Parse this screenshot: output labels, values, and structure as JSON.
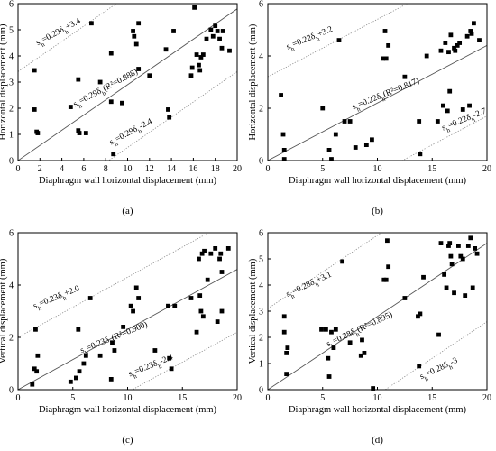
{
  "chart_data": [
    {
      "type": "scatter",
      "panel_label": "(a)",
      "xlabel": "Diaphragm wall horizontal displacement (mm)",
      "ylabel": "Horizontal displacement (mm)",
      "xlim": [
        0,
        20
      ],
      "ylim": [
        0,
        6
      ],
      "xticks": [
        0,
        2,
        4,
        6,
        8,
        10,
        12,
        14,
        16,
        18,
        20
      ],
      "yticks": [
        0,
        1,
        2,
        3,
        4,
        5,
        6
      ],
      "lines": [
        {
          "label": "s_h=0.29δ_h+3.4",
          "slope": 0.29,
          "intercept": 3.4,
          "style": "dotted",
          "label_at": [
            1.8,
            4.4
          ],
          "label_rot": -28
        },
        {
          "label": "s_h=0.29δ_h(R²=0.888)",
          "slope": 0.29,
          "intercept": 0,
          "style": "solid",
          "label_at": [
            5.2,
            2.05
          ],
          "label_rot": -28
        },
        {
          "label": "s_h=0.29δ_h-2.4",
          "slope": 0.29,
          "intercept": -2.4,
          "style": "dotted",
          "label_at": [
            8.5,
            0.6
          ],
          "label_rot": -28
        }
      ],
      "points": [
        [
          1.5,
          3.45
        ],
        [
          1.5,
          1.95
        ],
        [
          1.7,
          1.1
        ],
        [
          1.8,
          1.05
        ],
        [
          4.8,
          2.05
        ],
        [
          5.5,
          3.1
        ],
        [
          5.5,
          1.15
        ],
        [
          5.6,
          1.05
        ],
        [
          6.2,
          1.05
        ],
        [
          6.7,
          5.25
        ],
        [
          7.5,
          3.0
        ],
        [
          8.5,
          4.1
        ],
        [
          8.5,
          2.25
        ],
        [
          8.7,
          0.25
        ],
        [
          9.5,
          2.2
        ],
        [
          10.5,
          4.95
        ],
        [
          10.6,
          4.75
        ],
        [
          10.8,
          4.45
        ],
        [
          11.0,
          5.25
        ],
        [
          11.0,
          3.5
        ],
        [
          12.0,
          3.25
        ],
        [
          13.5,
          4.25
        ],
        [
          13.7,
          1.95
        ],
        [
          13.8,
          1.65
        ],
        [
          14.2,
          4.95
        ],
        [
          15.8,
          3.25
        ],
        [
          15.9,
          3.55
        ],
        [
          16.1,
          5.85
        ],
        [
          16.3,
          4.05
        ],
        [
          16.5,
          3.65
        ],
        [
          16.6,
          3.45
        ],
        [
          16.7,
          3.95
        ],
        [
          16.9,
          4.05
        ],
        [
          17.2,
          4.65
        ],
        [
          17.6,
          5.0
        ],
        [
          17.8,
          4.75
        ],
        [
          18.0,
          5.15
        ],
        [
          18.2,
          4.95
        ],
        [
          18.4,
          4.65
        ],
        [
          18.6,
          4.3
        ],
        [
          18.7,
          4.95
        ],
        [
          19.3,
          4.2
        ]
      ]
    },
    {
      "type": "scatter",
      "panel_label": "(b)",
      "xlabel": "Diaphragm wall horizontal displacement (mm)",
      "ylabel": "Horizontal displacement (mm)",
      "xlim": [
        0,
        20
      ],
      "ylim": [
        0,
        6
      ],
      "xticks": [
        0,
        5,
        10,
        15,
        20
      ],
      "yticks": [
        0,
        2,
        4,
        6
      ],
      "lines": [
        {
          "label": "s_h=0.22δ_h+3.2",
          "slope": 0.22,
          "intercept": 3.2,
          "style": "dotted",
          "label_at": [
            1.8,
            4.25
          ],
          "label_rot": -22
        },
        {
          "label": "s_h=0.22δ_h(R²=0.817)",
          "slope": 0.22,
          "intercept": 0,
          "style": "solid",
          "label_at": [
            7.8,
            1.95
          ],
          "label_rot": -22
        },
        {
          "label": "s_h=0.22δ_h-2.7",
          "slope": 0.22,
          "intercept": -2.7,
          "style": "dotted",
          "label_at": [
            16.0,
            1.15
          ],
          "label_rot": -22
        }
      ],
      "points": [
        [
          1.2,
          2.5
        ],
        [
          1.4,
          1.0
        ],
        [
          1.5,
          0.4
        ],
        [
          1.5,
          0.05
        ],
        [
          5.0,
          2.0
        ],
        [
          5.6,
          0.4
        ],
        [
          5.8,
          0.05
        ],
        [
          6.2,
          1.0
        ],
        [
          6.5,
          4.6
        ],
        [
          7.0,
          1.5
        ],
        [
          7.5,
          1.5
        ],
        [
          8.0,
          0.5
        ],
        [
          9.0,
          0.6
        ],
        [
          9.5,
          0.8
        ],
        [
          10.5,
          3.9
        ],
        [
          10.7,
          4.95
        ],
        [
          10.8,
          3.9
        ],
        [
          11.0,
          4.4
        ],
        [
          12.5,
          3.2
        ],
        [
          13.8,
          1.5
        ],
        [
          13.9,
          0.25
        ],
        [
          14.5,
          4.0
        ],
        [
          15.5,
          1.5
        ],
        [
          15.8,
          4.2
        ],
        [
          16.0,
          2.1
        ],
        [
          16.2,
          4.5
        ],
        [
          16.4,
          1.9
        ],
        [
          16.5,
          4.15
        ],
        [
          16.6,
          2.65
        ],
        [
          16.7,
          4.8
        ],
        [
          17.0,
          4.3
        ],
        [
          17.1,
          4.2
        ],
        [
          17.3,
          4.4
        ],
        [
          17.5,
          4.5
        ],
        [
          17.8,
          1.95
        ],
        [
          18.2,
          4.75
        ],
        [
          18.4,
          2.1
        ],
        [
          18.5,
          4.95
        ],
        [
          18.6,
          4.85
        ],
        [
          18.8,
          5.25
        ],
        [
          19.3,
          4.6
        ]
      ]
    },
    {
      "type": "scatter",
      "panel_label": "(c)",
      "xlabel": "Diaphragm wall horizontal displacement (mm)",
      "ylabel": "Vertical displacement (mm)",
      "xlim": [
        0,
        20
      ],
      "ylim": [
        0,
        6
      ],
      "xticks": [
        0,
        5,
        10,
        15,
        20
      ],
      "yticks": [
        0,
        2,
        4,
        6
      ],
      "lines": [
        {
          "label": "s_h=0.23δ_h+2.0",
          "slope": 0.23,
          "intercept": 2.0,
          "style": "dotted",
          "label_at": [
            1.5,
            3.1
          ],
          "label_rot": -22
        },
        {
          "label": "s_h=0.23δ_h(R²=0.900)",
          "slope": 0.23,
          "intercept": 0,
          "style": "solid",
          "label_at": [
            5.8,
            1.4
          ],
          "label_rot": -22
        },
        {
          "label": "s_h=0.23δ_h-2.4",
          "slope": 0.23,
          "intercept": -2.4,
          "style": "dotted",
          "label_at": [
            10.2,
            0.5
          ],
          "label_rot": -22
        }
      ],
      "points": [
        [
          1.3,
          0.2
        ],
        [
          1.5,
          0.8
        ],
        [
          1.6,
          2.3
        ],
        [
          1.7,
          0.7
        ],
        [
          1.8,
          1.3
        ],
        [
          4.8,
          0.3
        ],
        [
          5.3,
          0.45
        ],
        [
          5.5,
          2.3
        ],
        [
          5.6,
          0.7
        ],
        [
          6.0,
          1.0
        ],
        [
          6.2,
          1.3
        ],
        [
          6.6,
          3.5
        ],
        [
          7.5,
          1.3
        ],
        [
          8.5,
          0.4
        ],
        [
          8.6,
          1.8
        ],
        [
          8.8,
          1.5
        ],
        [
          9.6,
          2.4
        ],
        [
          10.3,
          3.2
        ],
        [
          10.5,
          3.0
        ],
        [
          10.8,
          3.9
        ],
        [
          11.0,
          3.5
        ],
        [
          12.5,
          1.5
        ],
        [
          13.7,
          3.2
        ],
        [
          13.8,
          1.2
        ],
        [
          14.0,
          0.8
        ],
        [
          14.3,
          3.2
        ],
        [
          15.8,
          3.5
        ],
        [
          16.3,
          2.2
        ],
        [
          16.5,
          5.0
        ],
        [
          16.6,
          3.6
        ],
        [
          16.7,
          3.0
        ],
        [
          16.8,
          5.2
        ],
        [
          16.9,
          2.8
        ],
        [
          17.0,
          5.3
        ],
        [
          17.3,
          4.2
        ],
        [
          17.6,
          5.2
        ],
        [
          18.0,
          5.4
        ],
        [
          18.2,
          2.6
        ],
        [
          18.4,
          5.0
        ],
        [
          18.5,
          5.2
        ],
        [
          18.6,
          4.5
        ],
        [
          18.6,
          3.0
        ],
        [
          19.2,
          5.4
        ]
      ]
    },
    {
      "type": "scatter",
      "panel_label": "(d)",
      "xlabel": "Diaphragm wall horizontal displacement (mm)",
      "ylabel": "Vertical displacement (mm)",
      "xlim": [
        0,
        20
      ],
      "ylim": [
        0,
        6
      ],
      "xticks": [
        0,
        5,
        10,
        15,
        20
      ],
      "yticks": [
        0,
        1,
        2,
        3,
        4,
        5,
        6
      ],
      "lines": [
        {
          "label": "s_h=0.28δ_h+3.1",
          "slope": 0.28,
          "intercept": 3.1,
          "style": "dotted",
          "label_at": [
            1.8,
            3.55
          ],
          "label_rot": -25
        },
        {
          "label": "s_h=0.28δ_h(R²=0.895)",
          "slope": 0.28,
          "intercept": 0,
          "style": "solid",
          "label_at": [
            5.5,
            1.65
          ],
          "label_rot": -25
        },
        {
          "label": "s_h=0.28δ_h-3",
          "slope": 0.28,
          "intercept": -3,
          "style": "dotted",
          "label_at": [
            14.0,
            0.4
          ],
          "label_rot": -25
        }
      ],
      "points": [
        [
          1.5,
          2.8
        ],
        [
          1.5,
          2.2
        ],
        [
          1.7,
          1.4
        ],
        [
          1.7,
          0.6
        ],
        [
          1.8,
          1.6
        ],
        [
          4.9,
          2.3
        ],
        [
          5.3,
          2.3
        ],
        [
          5.5,
          1.2
        ],
        [
          5.6,
          0.5
        ],
        [
          5.8,
          2.2
        ],
        [
          6.0,
          1.6
        ],
        [
          6.2,
          2.3
        ],
        [
          6.8,
          4.9
        ],
        [
          7.5,
          1.8
        ],
        [
          8.5,
          1.3
        ],
        [
          8.6,
          1.9
        ],
        [
          8.8,
          1.4
        ],
        [
          9.6,
          0.05
        ],
        [
          10.6,
          4.2
        ],
        [
          10.8,
          4.2
        ],
        [
          10.9,
          5.7
        ],
        [
          11.0,
          4.7
        ],
        [
          12.5,
          3.5
        ],
        [
          13.7,
          2.8
        ],
        [
          13.8,
          0.9
        ],
        [
          13.9,
          2.9
        ],
        [
          14.2,
          4.3
        ],
        [
          15.6,
          2.1
        ],
        [
          15.8,
          5.6
        ],
        [
          16.1,
          4.4
        ],
        [
          16.3,
          3.9
        ],
        [
          16.5,
          5.5
        ],
        [
          16.6,
          5.6
        ],
        [
          16.7,
          5.1
        ],
        [
          16.8,
          4.8
        ],
        [
          17.0,
          3.7
        ],
        [
          17.4,
          5.5
        ],
        [
          17.6,
          5.1
        ],
        [
          17.8,
          5.0
        ],
        [
          18.0,
          3.6
        ],
        [
          18.3,
          5.5
        ],
        [
          18.5,
          5.8
        ],
        [
          18.7,
          3.9
        ],
        [
          18.9,
          5.4
        ],
        [
          19.1,
          5.2
        ]
      ]
    }
  ]
}
